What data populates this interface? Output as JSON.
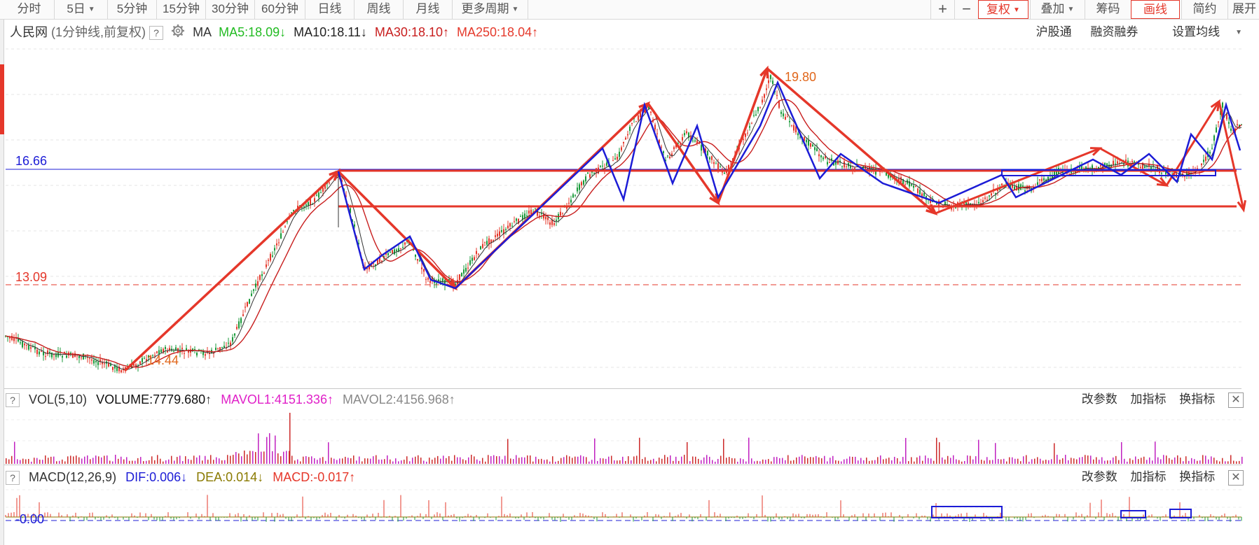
{
  "toolbar": {
    "periods": [
      "分时",
      "5日",
      "5分钟",
      "15分钟",
      "30分钟",
      "60分钟",
      "日线",
      "周线",
      "月线",
      "更多周期"
    ],
    "plus": "+",
    "minus": "−",
    "fuquan": "复权",
    "diejia": "叠加",
    "chouma": "筹码",
    "huaxian": "画线",
    "jianyue": "简约",
    "zhankai": "展开"
  },
  "main": {
    "stock_name": "人民网",
    "mode": "(1分钟线,前复权)",
    "ma_label": "MA",
    "ma5": "MA5:18.09",
    "ma5_arrow": "↓",
    "ma10": "MA10:18.11",
    "ma10_arrow": "↓",
    "ma30": "MA30:18.10",
    "ma30_arrow": "↑",
    "ma250": "MA250:18.04",
    "ma250_arrow": "↑",
    "links": [
      "沪股通",
      "融资融券",
      "设置均线"
    ],
    "level_high": "16.66",
    "level_low": "13.09",
    "peak_label": "19.80",
    "low_label": "14.44"
  },
  "vol": {
    "title": "VOL(5,10)",
    "volume": "VOLUME:7779.680",
    "volume_arrow": "↑",
    "mavol1": "MAVOL1:4151.336",
    "mavol1_arrow": "↑",
    "mavol2": "MAVOL2:4156.968",
    "mavol2_arrow": "↑",
    "actions": [
      "改参数",
      "加指标",
      "换指标"
    ]
  },
  "macd": {
    "title": "MACD(12,26,9)",
    "dif": "DIF:0.006",
    "dif_arrow": "↓",
    "dea": "DEA:0.014",
    "dea_arrow": "↓",
    "macd": "MACD:-0.017",
    "macd_arrow": "↑",
    "zero_label": "-0.00",
    "actions": [
      "改参数",
      "加指标",
      "换指标"
    ]
  },
  "colors": {
    "up": "#e5372a",
    "down": "#1a9a3a",
    "ma5": "#22bb22",
    "ma30": "#c81e1e",
    "ma250": "#e53a2c",
    "blue": "#1c1cd6",
    "magenta": "#e020c8",
    "olive": "#8a7a00"
  }
}
